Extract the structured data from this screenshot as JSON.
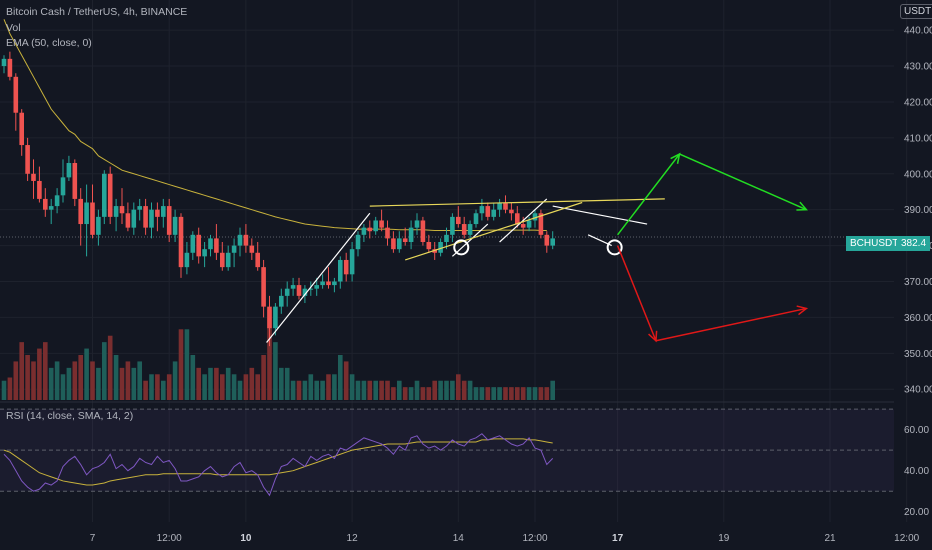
{
  "header": {
    "title": "Bitcoin Cash / TetherUS, 4h, BINANCE",
    "vol": "Vol",
    "ema": "EMA (50, close, 0)",
    "currency": "USDT"
  },
  "rsi_label": "RSI (14, close, SMA, 14, 2)",
  "price_badge": {
    "symbol": "BCHUSDT",
    "value": "382.4"
  },
  "colors": {
    "bg": "#131722",
    "up": "#26a69a",
    "down": "#ef5350",
    "ema": "#c8b23c",
    "rsi": "#7e57c2",
    "rsi_ma": "#c8b23c"
  },
  "chart_data": [
    {
      "type": "candlestick",
      "title": "Bitcoin Cash / TetherUS, 4h, BINANCE",
      "ylim": [
        337,
        447
      ],
      "yticks": [
        340,
        350,
        360,
        370,
        380,
        390,
        400,
        410,
        420,
        430,
        440
      ],
      "xticks": [
        {
          "i": 15,
          "label": "7"
        },
        {
          "i": 28,
          "label": "12:00"
        },
        {
          "i": 41,
          "label": "10"
        },
        {
          "i": 59,
          "label": "12"
        },
        {
          "i": 77,
          "label": "14"
        },
        {
          "i": 90,
          "label": "12:00"
        },
        {
          "i": 104,
          "label": "17"
        },
        {
          "i": 122,
          "label": "19"
        },
        {
          "i": 140,
          "label": "21"
        },
        {
          "i": 153,
          "label": "12:00"
        }
      ],
      "bold_xticks": [
        "10",
        "17"
      ],
      "last_price": 382.4,
      "candles": [
        [
          430,
          433,
          428,
          432
        ],
        [
          432,
          434,
          426,
          427
        ],
        [
          427,
          428,
          412,
          417
        ],
        [
          417,
          418,
          405,
          408
        ],
        [
          408,
          410,
          398,
          400
        ],
        [
          400,
          404,
          393,
          398
        ],
        [
          398,
          402,
          392,
          393
        ],
        [
          393,
          396,
          388,
          390
        ],
        [
          390,
          393,
          386,
          391
        ],
        [
          391,
          396,
          389,
          394
        ],
        [
          394,
          404,
          392,
          399
        ],
        [
          399,
          405,
          398,
          403
        ],
        [
          403,
          404,
          391,
          393
        ],
        [
          393,
          396,
          380,
          386
        ],
        [
          386,
          397,
          377,
          392
        ],
        [
          392,
          397,
          382,
          383
        ],
        [
          383,
          390,
          380,
          388
        ],
        [
          388,
          401,
          386,
          400
        ],
        [
          400,
          402,
          386,
          388
        ],
        [
          388,
          393,
          384,
          391
        ],
        [
          391,
          396,
          386,
          389
        ],
        [
          389,
          392,
          384,
          385
        ],
        [
          385,
          392,
          383,
          390
        ],
        [
          390,
          393,
          387,
          391
        ],
        [
          391,
          393,
          383,
          385
        ],
        [
          385,
          392,
          382,
          390
        ],
        [
          390,
          392,
          384,
          388
        ],
        [
          388,
          393,
          385,
          391
        ],
        [
          391,
          393,
          381,
          383
        ],
        [
          383,
          390,
          381,
          388
        ],
        [
          388,
          389,
          371,
          374
        ],
        [
          374,
          381,
          372,
          378
        ],
        [
          378,
          384,
          376,
          383
        ],
        [
          383,
          385,
          375,
          377
        ],
        [
          377,
          381,
          374,
          379
        ],
        [
          379,
          383,
          377,
          382
        ],
        [
          382,
          386,
          376,
          378
        ],
        [
          378,
          381,
          373,
          374
        ],
        [
          374,
          380,
          373,
          378
        ],
        [
          378,
          382,
          374,
          380
        ],
        [
          380,
          385,
          377,
          383
        ],
        [
          383,
          386,
          378,
          380
        ],
        [
          380,
          382,
          376,
          378
        ],
        [
          378,
          381,
          373,
          374
        ],
        [
          374,
          376,
          360,
          363
        ],
        [
          363,
          366,
          352,
          357
        ],
        [
          357,
          364,
          355,
          363
        ],
        [
          363,
          368,
          361,
          366
        ],
        [
          366,
          370,
          363,
          368
        ],
        [
          368,
          371,
          366,
          369
        ],
        [
          369,
          371,
          365,
          366
        ],
        [
          366,
          369,
          364,
          368
        ],
        [
          368,
          370,
          366,
          368
        ],
        [
          368,
          371,
          366,
          369
        ],
        [
          369,
          372,
          368,
          370
        ],
        [
          370,
          374,
          368,
          369
        ],
        [
          369,
          371,
          367,
          370
        ],
        [
          370,
          377,
          368,
          376
        ],
        [
          376,
          378,
          370,
          372
        ],
        [
          372,
          381,
          370,
          379
        ],
        [
          379,
          384,
          377,
          383
        ],
        [
          383,
          386,
          381,
          385
        ],
        [
          385,
          387,
          382,
          384
        ],
        [
          384,
          388,
          383,
          387
        ],
        [
          387,
          390,
          384,
          385
        ],
        [
          385,
          387,
          380,
          382
        ],
        [
          382,
          384,
          378,
          379
        ],
        [
          379,
          384,
          378,
          382
        ],
        [
          382,
          385,
          380,
          381
        ],
        [
          381,
          387,
          379,
          385
        ],
        [
          385,
          389,
          383,
          387
        ],
        [
          387,
          388,
          380,
          381
        ],
        [
          381,
          383,
          378,
          379
        ],
        [
          379,
          381,
          376,
          378
        ],
        [
          378,
          382,
          377,
          381
        ],
        [
          381,
          385,
          379,
          383
        ],
        [
          383,
          389,
          381,
          388
        ],
        [
          388,
          391,
          385,
          386
        ],
        [
          386,
          388,
          382,
          383
        ],
        [
          383,
          387,
          382,
          386
        ],
        [
          386,
          390,
          385,
          389
        ],
        [
          389,
          393,
          387,
          391
        ],
        [
          391,
          392,
          387,
          388
        ],
        [
          388,
          392,
          387,
          390
        ],
        [
          390,
          393,
          388,
          392
        ],
        [
          392,
          394,
          389,
          390
        ],
        [
          390,
          392,
          387,
          389
        ],
        [
          389,
          391,
          385,
          386
        ],
        [
          386,
          388,
          383,
          385
        ],
        [
          385,
          388,
          384,
          387
        ],
        [
          387,
          390,
          385,
          389
        ],
        [
          389,
          390,
          382,
          383
        ],
        [
          383,
          384,
          378,
          380
        ],
        [
          380,
          384,
          379,
          382
        ]
      ],
      "ema50": [
        443,
        439,
        436,
        433,
        430,
        427,
        424,
        421,
        418,
        416,
        414,
        412,
        411,
        409,
        408,
        407,
        405,
        404,
        403,
        402,
        401,
        400.5,
        400,
        399.5,
        399,
        398.5,
        398,
        397.5,
        397,
        396.5,
        396,
        395.5,
        395,
        394.5,
        394,
        393.5,
        393,
        392.5,
        392,
        391.5,
        391,
        390.5,
        390,
        389.5,
        389,
        388.5,
        388,
        387.6,
        387.2,
        386.8,
        386.4,
        386,
        385.8,
        385.6,
        385.4,
        385.2,
        385,
        384.9,
        384.8,
        384.7,
        384.6,
        384.6,
        384.6,
        384.6,
        384.6,
        384.6,
        384.5,
        384.4,
        384.4,
        384.4,
        384.4,
        384.4,
        384.3,
        384.2,
        384.2,
        384.2,
        384.2,
        384.2,
        384.2,
        384.2,
        384.2,
        384.2,
        384.3,
        384.3,
        384.3,
        384.3,
        384.3,
        384.3,
        384.3,
        384.3,
        384.3,
        384.2,
        384.2
      ],
      "volume": [
        3,
        3.5,
        6,
        9,
        7,
        6,
        8,
        9,
        5,
        6,
        4,
        5,
        6,
        7,
        8,
        6,
        5,
        9,
        10,
        7,
        5,
        6,
        5,
        6,
        3,
        4,
        4,
        3,
        4,
        6,
        11,
        11,
        7,
        5,
        4,
        5,
        5,
        4,
        5,
        4,
        3,
        4,
        5,
        4,
        7,
        14,
        9,
        5,
        5,
        3,
        3,
        3,
        4,
        3,
        3,
        4,
        4,
        7,
        6,
        4,
        3,
        3,
        3,
        3,
        3,
        3,
        2,
        3,
        2,
        2,
        3,
        2,
        2,
        3,
        3,
        3,
        3,
        4,
        3,
        3,
        2,
        2,
        2,
        2,
        2,
        2,
        2,
        2,
        2,
        2,
        2,
        2,
        2,
        3
      ],
      "drawings": {
        "white_lines": [
          [
            [
              44.5,
              353
            ],
            [
              62,
              389
            ]
          ],
          [
            [
              76,
              377
            ],
            [
              82,
              386
            ]
          ],
          [
            [
              84,
              381
            ],
            [
              92,
              393
            ]
          ],
          [
            [
              93,
              391
            ],
            [
              109,
              386
            ]
          ],
          [
            [
              99,
              383
            ],
            [
              103,
              380
            ]
          ]
        ],
        "yellow_lines": [
          [
            [
              62,
              391
            ],
            [
              112,
              393
            ]
          ],
          [
            [
              68,
              376
            ],
            [
              98,
              392
            ]
          ]
        ],
        "circles": [
          [
            77.5,
            379.5
          ],
          [
            103.5,
            379.5
          ]
        ],
        "green_arrow": [
          [
            104,
            383
          ],
          [
            114.5,
            405.5
          ],
          [
            136,
            390
          ]
        ],
        "red_arrow": [
          [
            104,
            380
          ],
          [
            110.5,
            353.5
          ],
          [
            136,
            362.5
          ]
        ]
      }
    },
    {
      "type": "line",
      "title": "RSI (14, close, SMA, 14, 2)",
      "ylim": [
        15,
        72
      ],
      "yticks": [
        20,
        40,
        60
      ],
      "bands": [
        30,
        50,
        70
      ],
      "series": [
        {
          "values": [
            48,
            45,
            40,
            35,
            32,
            30,
            31,
            34,
            33,
            35,
            42,
            45,
            47,
            43,
            38,
            41,
            42,
            44,
            48,
            41,
            43,
            40,
            42,
            46,
            44,
            43,
            47,
            44,
            45,
            41,
            35,
            35,
            36,
            37,
            40,
            42,
            39,
            37,
            38,
            42,
            44,
            39,
            40,
            38,
            32,
            28,
            36,
            42,
            43,
            46,
            44,
            42,
            47,
            45,
            47,
            48,
            46,
            51,
            50,
            52,
            54,
            56,
            55,
            54,
            53,
            51,
            48,
            52,
            50,
            56,
            57,
            53,
            51,
            52,
            50,
            52,
            55,
            53,
            52,
            55,
            56,
            58,
            55,
            56,
            57,
            55,
            53,
            52,
            53,
            56,
            51,
            50,
            43,
            46
          ]
        },
        {
          "values": [
            50,
            49,
            47,
            45,
            43,
            41,
            39,
            38,
            37,
            36,
            35,
            34.5,
            34,
            33.5,
            33,
            33,
            33.5,
            34,
            35,
            35.5,
            36,
            36.5,
            37,
            37.5,
            38,
            38,
            38,
            38.5,
            38.5,
            38.5,
            38.5,
            38.5,
            38.5,
            38.5,
            38.5,
            38.5,
            38,
            38,
            38,
            38,
            38,
            38,
            38,
            38,
            38,
            38,
            38.5,
            39,
            39.5,
            40,
            41,
            42,
            43,
            44,
            45,
            46,
            47,
            48,
            49,
            50,
            50.5,
            51,
            51.5,
            52,
            52.5,
            53,
            53,
            53,
            53,
            53.5,
            54,
            54,
            54,
            54,
            54,
            54,
            54,
            54,
            54,
            54,
            54,
            55,
            55,
            55.5,
            55.5,
            55.5,
            55.5,
            55.5,
            55.5,
            55,
            55,
            54.5,
            54,
            53.5
          ]
        }
      ]
    }
  ]
}
